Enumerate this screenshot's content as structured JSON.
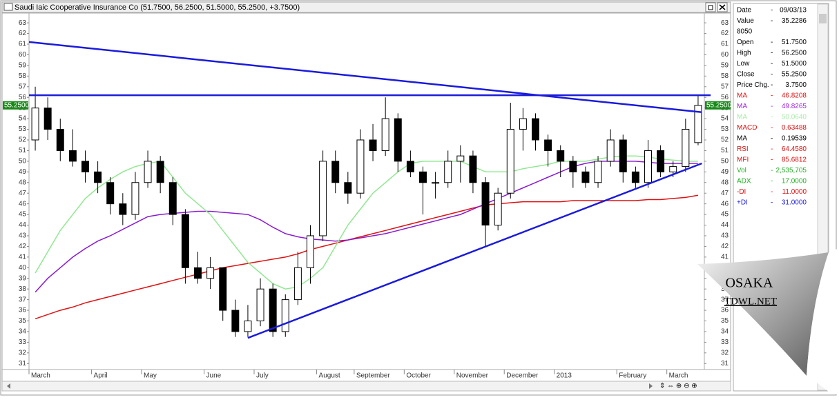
{
  "chart_data": {
    "type": "candlestick",
    "title": "Saudi Iaic Cooperative Insurance Co (51.7500, 56.2500, 51.5000, 55.2500, +3.7500)",
    "last_price_label": "55.2500",
    "categories": [
      "March",
      null,
      null,
      null,
      null,
      "April",
      null,
      null,
      null,
      "May",
      null,
      null,
      null,
      null,
      "June",
      null,
      null,
      null,
      "July",
      null,
      null,
      null,
      null,
      "August",
      null,
      null,
      "September",
      null,
      null,
      null,
      "October",
      null,
      null,
      null,
      "November",
      null,
      null,
      null,
      "December",
      null,
      null,
      null,
      "2013",
      null,
      null,
      null,
      null,
      "February",
      null,
      null,
      null,
      "March",
      null,
      null
    ],
    "open": [
      52,
      55,
      53,
      51,
      50,
      49,
      48,
      46,
      45,
      48,
      50,
      48,
      45,
      40,
      39,
      40,
      36,
      34,
      35,
      38,
      34,
      37,
      40,
      43,
      50,
      48,
      47,
      52,
      51,
      54,
      50,
      49,
      48,
      48,
      50,
      50.5,
      48,
      44,
      47,
      53,
      54,
      52,
      51,
      50,
      49,
      48,
      50,
      52,
      49,
      48,
      51,
      49,
      49.5,
      51.75
    ],
    "high": [
      57,
      56,
      54,
      53,
      51,
      50,
      48.5,
      47,
      49,
      51,
      50.5,
      48.5,
      45.5,
      41.5,
      41,
      40,
      37,
      36.5,
      39,
      38.5,
      37.5,
      41.5,
      44,
      51,
      51,
      49,
      53,
      53.5,
      56,
      54.5,
      51,
      49.5,
      49,
      51,
      51.5,
      51,
      48.5,
      47.5,
      55.5,
      55,
      54.5,
      52.5,
      51.5,
      50.5,
      49.5,
      50.5,
      53,
      52.5,
      49.5,
      52,
      51.5,
      50,
      54,
      56.25
    ],
    "low": [
      51,
      52,
      50,
      49.5,
      48,
      47,
      45,
      44,
      44.5,
      47.5,
      47,
      44,
      38.5,
      38.5,
      38,
      35,
      33.5,
      33.5,
      34.5,
      33.5,
      33.5,
      36.5,
      38.5,
      42.5,
      47,
      46,
      46.5,
      50,
      50.5,
      49,
      48.5,
      45,
      46.5,
      47.5,
      48,
      47,
      42,
      43.5,
      46.5,
      51,
      51,
      49.5,
      48.5,
      47.5,
      47.5,
      47.5,
      49.5,
      48,
      47.5,
      47.5,
      48.5,
      48.5,
      49,
      51.5
    ],
    "close": [
      55,
      53,
      51,
      50,
      49,
      48,
      46,
      45,
      48,
      50,
      48,
      45,
      40,
      39,
      40,
      36,
      34,
      35,
      38,
      34,
      37,
      40,
      43,
      50,
      48,
      47,
      52,
      51,
      54,
      50,
      49,
      48,
      48,
      50,
      50.5,
      48,
      44,
      47,
      53,
      54,
      52,
      51,
      50,
      49,
      48,
      50,
      52,
      49,
      48,
      51,
      49,
      49.5,
      53,
      55.25
    ],
    "series": [
      {
        "color": "#e01010",
        "values": [
          35.2,
          35.6,
          36,
          36.3,
          36.7,
          37,
          37.3,
          37.6,
          37.9,
          38.2,
          38.5,
          38.8,
          39.1,
          39.4,
          39.7,
          40,
          40.2,
          40.4,
          40.6,
          40.8,
          41,
          41.3,
          41.7,
          42,
          42.3,
          42.6,
          42.9,
          43.2,
          43.5,
          43.8,
          44.1,
          44.4,
          44.7,
          45,
          45.3,
          45.6,
          45.9,
          46,
          46.1,
          46.2,
          46.2,
          46.2,
          46.2,
          46.3,
          46.3,
          46.3,
          46.3,
          46.3,
          46.3,
          46.4,
          46.4,
          46.5,
          46.6,
          46.8
        ]
      },
      {
        "color": "#8a1ad0",
        "values": [
          37.7,
          39,
          40,
          41,
          41.8,
          42.5,
          43,
          43.6,
          44.2,
          44.8,
          45,
          45.1,
          45.2,
          45.3,
          45.3,
          45.2,
          45.1,
          45,
          44.5,
          43.8,
          43.2,
          42.9,
          42.7,
          42.6,
          42.5,
          42.6,
          42.8,
          43,
          43.2,
          43.5,
          43.8,
          44.1,
          44.4,
          44.7,
          45,
          45.5,
          46,
          46.5,
          47,
          47.5,
          48,
          48.5,
          49,
          49.5,
          49.8,
          50,
          50,
          50,
          50,
          49.9,
          49.8,
          49.8,
          49.8,
          49.8
        ]
      },
      {
        "color": "#90e890",
        "values": [
          39.5,
          41.5,
          43.5,
          45,
          46.5,
          47.5,
          48.3,
          49,
          49.5,
          49.8,
          50,
          48.5,
          47,
          46,
          45,
          43.5,
          42,
          40.5,
          39.5,
          38.5,
          38,
          38.2,
          39,
          40,
          42,
          44,
          45.5,
          47,
          48,
          49,
          49.8,
          50,
          50,
          50,
          50,
          49.5,
          49,
          49,
          49,
          49.3,
          49.5,
          49.7,
          50,
          50,
          50,
          50.2,
          50.4,
          50.5,
          50.5,
          50.4,
          50.2,
          50.1,
          50,
          50
        ]
      }
    ],
    "trendlines": [
      {
        "color": "#1a1adc",
        "x": [
          -0.5,
          53.3
        ],
        "values": [
          61.2,
          54.6
        ]
      },
      {
        "color": "#1a1adc",
        "x": [
          -0.5,
          54
        ],
        "values": [
          56.2,
          56.2
        ]
      },
      {
        "color": "#1a1adc",
        "x": [
          17,
          53.3
        ],
        "values": [
          33.4,
          49.8
        ]
      }
    ],
    "up_color": "#ffffff",
    "down_color": "#000000",
    "ylim": [
      30.5,
      63.85
    ],
    "yticks": [
      31,
      32,
      33,
      34,
      35,
      36,
      37,
      38,
      39,
      40,
      41,
      42,
      43,
      44,
      45,
      46,
      47,
      48,
      49,
      50,
      51,
      52,
      53,
      54,
      55,
      56,
      57,
      58,
      59,
      60,
      61,
      62,
      63
    ]
  },
  "info_panel": {
    "rows": [
      {
        "label": "Date",
        "sep": "-",
        "value": "09/03/13",
        "color": "#000000"
      },
      {
        "label": "Value",
        "sep": "-",
        "value": "35.2286",
        "color": "#000000"
      },
      {
        "label": "8050",
        "color": "#000000"
      },
      {
        "label": "Open",
        "sep": "-",
        "value": "51.7500",
        "color": "#000000"
      },
      {
        "label": "High",
        "sep": "-",
        "value": "56.2500",
        "color": "#000000"
      },
      {
        "label": "Low",
        "sep": "-",
        "value": "51.5000",
        "color": "#000000"
      },
      {
        "label": "Close",
        "sep": "-",
        "value": "55.2500",
        "color": "#000000"
      },
      {
        "label": "Price Chg.",
        "sep": "-",
        "value": "3.7500",
        "color": "#000000"
      },
      {
        "label": "MA",
        "sep": "-",
        "value": "46.8208",
        "color": "#e01010"
      },
      {
        "label": "MA",
        "sep": "-",
        "value": "49.8265",
        "color": "#a020e0"
      },
      {
        "label": "MA",
        "sep": "-",
        "value": "50.0640",
        "color": "#a8eca8"
      },
      {
        "label": "MACD",
        "sep": "-",
        "value": "0.63488",
        "color": "#e01010"
      },
      {
        "label": "MA",
        "sep": "-",
        "value": "0.19539",
        "color": "#000000"
      },
      {
        "label": "RSI",
        "sep": "-",
        "value": "64.4580",
        "color": "#e01010"
      },
      {
        "label": "MFI",
        "sep": "-",
        "value": "85.6812",
        "color": "#e01010"
      },
      {
        "label": "Vol",
        "sep": "-",
        "value": "2,535,705",
        "color": "#20b020"
      },
      {
        "label": "ADX",
        "sep": "-",
        "value": "17.0000",
        "color": "#20b020"
      },
      {
        "label": "-DI",
        "sep": "-",
        "value": "11.0000",
        "color": "#e01010"
      },
      {
        "label": "+DI",
        "sep": "-",
        "value": "31.0000",
        "color": "#2020e0"
      }
    ]
  },
  "watermark": {
    "title": "OSAKA",
    "subtitle": "TDWL.NET"
  }
}
